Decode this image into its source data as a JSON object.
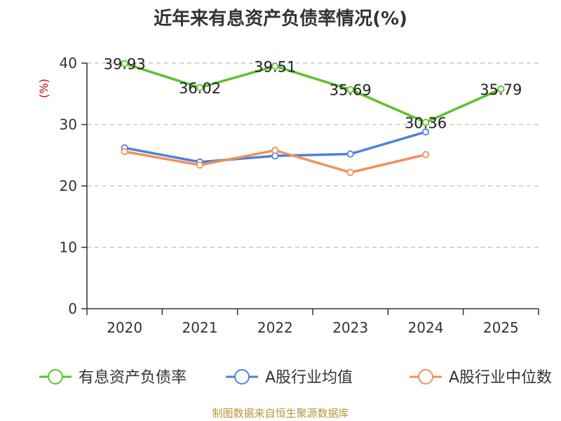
{
  "chart_data": {
    "type": "line",
    "title": "近年来有息资产负债率情况(%)",
    "ylabel": "(%)",
    "xlabel": "",
    "ylim": [
      0,
      40
    ],
    "yticks": [
      0,
      10,
      20,
      30,
      40
    ],
    "categories": [
      "2020",
      "2021",
      "2022",
      "2023",
      "2024",
      "2025"
    ],
    "grid": true,
    "legend_position": "bottom",
    "series": [
      {
        "name": "有息资产负债率",
        "color": "#5dc22b",
        "values": [
          39.93,
          36.02,
          39.51,
          35.69,
          30.36,
          35.79
        ],
        "labels": [
          "39.93",
          "36.02",
          "39.51",
          "35.69",
          "30.36",
          "35.79"
        ]
      },
      {
        "name": "A股行业均值",
        "color": "#4f81d9",
        "values": [
          26.2,
          23.9,
          24.9,
          25.2,
          28.8,
          null
        ]
      },
      {
        "name": "A股行业中位数",
        "color": "#f0905a",
        "values": [
          25.6,
          23.4,
          25.8,
          22.2,
          25.1,
          null
        ]
      }
    ]
  },
  "source": "制图数据来自恒生聚源数据库"
}
